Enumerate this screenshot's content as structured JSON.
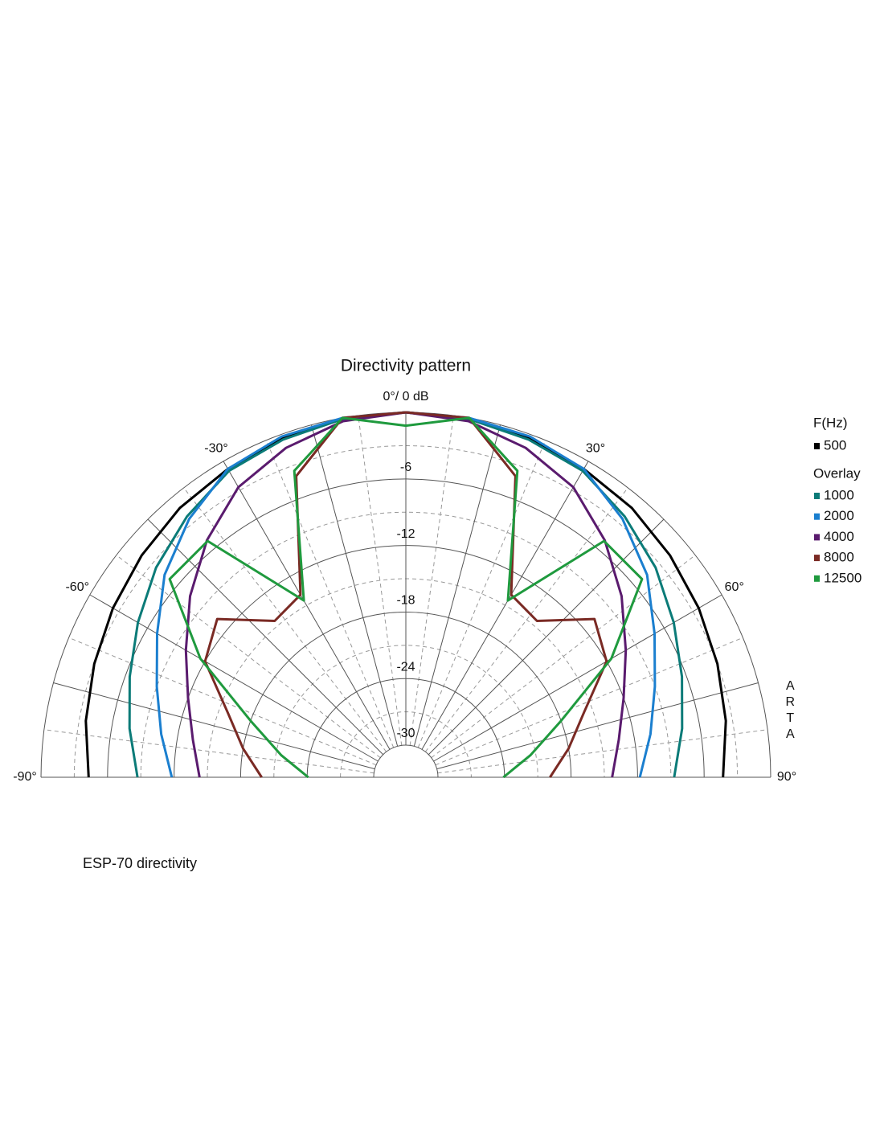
{
  "chart_data": {
    "type": "polar",
    "title": "Directivity pattern",
    "x": [
      -90,
      -80,
      -70,
      -60,
      -50,
      -40,
      -30,
      -20,
      -10,
      0,
      10,
      20,
      30,
      40,
      50,
      60,
      70,
      80,
      90
    ],
    "rlim": [
      -30,
      0
    ],
    "rticks": [
      -6,
      -12,
      -18,
      -24,
      -30
    ],
    "rticks_minor": [
      -3,
      -9,
      -15,
      -21,
      -27
    ],
    "thetaticks": [
      {
        "value": -90,
        "label": "-90°"
      },
      {
        "value": -60,
        "label": "-60°"
      },
      {
        "value": -30,
        "label": "-30°"
      },
      {
        "value": 0,
        "label": "0°/ 0 dB"
      },
      {
        "value": 30,
        "label": "30°"
      },
      {
        "value": 60,
        "label": "60°"
      },
      {
        "value": 90,
        "label": "90°"
      }
    ],
    "theta_grid": [
      -75,
      -45,
      -15,
      15,
      45,
      75
    ],
    "theta_grid_minor": [
      -82.5,
      -67.5,
      -52.5,
      -37.5,
      -22.5,
      -7.5,
      7.5,
      22.5,
      37.5,
      52.5,
      67.5,
      82.5
    ],
    "legend_title": "F(Hz)",
    "overlay_label": "Overlay",
    "series": [
      {
        "name": "500",
        "color": "#000000",
        "values": [
          -4.3,
          -3.6,
          -3,
          -2.4,
          -1.8,
          -1.2,
          -0.8,
          -0.4,
          -0.1,
          0,
          -0.1,
          -0.4,
          -0.8,
          -1.2,
          -1.8,
          -2.4,
          -3,
          -3.6,
          -4.3
        ]
      },
      {
        "name": "1000",
        "color": "#0b7b78",
        "values": [
          -8.7,
          -7.6,
          -6.4,
          -5,
          -3.5,
          -2.2,
          -1,
          -0.5,
          -0.1,
          0,
          -0.1,
          -0.5,
          -1,
          -2.2,
          -3.5,
          -5,
          -6.4,
          -7.6,
          -8.7
        ]
      },
      {
        "name": "2000",
        "color": "#1b7fcf",
        "values": [
          -11.8,
          -10.5,
          -9,
          -7,
          -4.5,
          -2.5,
          -0.8,
          -0.2,
          0,
          0,
          0,
          -0.2,
          -0.8,
          -2.5,
          -4.5,
          -7,
          -9,
          -10.5,
          -11.8
        ]
      },
      {
        "name": "4000",
        "color": "#5a1b6e",
        "values": [
          -14.3,
          -13.4,
          -12,
          -10,
          -7.5,
          -5,
          -2.7,
          -1.3,
          -0.3,
          0,
          -0.3,
          -1.3,
          -2.7,
          -5,
          -7.5,
          -10,
          -12,
          -13.4,
          -14.3
        ]
      },
      {
        "name": "8000",
        "color": "#7a2a24",
        "values": [
          -19.9,
          -18,
          -15.8,
          -12,
          -10.7,
          -14.5,
          -13.9,
          -4,
          0,
          0,
          0,
          -4,
          -13.9,
          -14.5,
          -10.7,
          -12,
          -15.8,
          -18,
          -19.9
        ]
      },
      {
        "name": "12500",
        "color": "#1f9a3e",
        "values": [
          -24.1,
          -21.5,
          -18,
          -11.5,
          -5.1,
          -5.1,
          -14.5,
          -3.5,
          0,
          -1.2,
          0,
          -3.5,
          -14.5,
          -5.1,
          -5.1,
          -11.5,
          -18,
          -21.5,
          -24.1
        ]
      }
    ],
    "watermark": "ARTA",
    "caption": "ESP-70 directivity"
  }
}
